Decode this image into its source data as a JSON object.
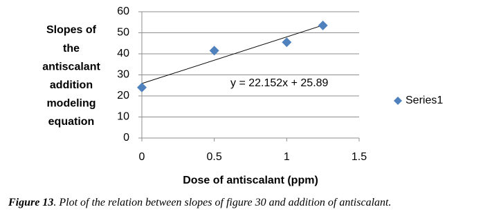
{
  "chart_data": {
    "type": "scatter",
    "y_label": [
      "Slopes of",
      "the",
      "antiscalant",
      "addition",
      "modeling",
      "equation"
    ],
    "x_label": "Dose of antiscalant (ppm)",
    "x": [
      0,
      0.5,
      1,
      1.25
    ],
    "series": [
      {
        "name": "Series1",
        "color": "#4f81bd",
        "values": [
          24,
          41.5,
          45.5,
          53.5
        ]
      }
    ],
    "trendline": {
      "slope": 22.152,
      "intercept": 25.89,
      "label": "y = 22.152x + 25.89",
      "color": "#000000"
    },
    "xlim": [
      0,
      1.5
    ],
    "xticks": [
      0,
      0.5,
      1,
      1.5
    ],
    "ylim": [
      0,
      60
    ],
    "yticks": [
      0,
      10,
      20,
      30,
      40,
      50,
      60
    ],
    "grid": true,
    "legend": "right",
    "caption": {
      "label": "Figure 13",
      "text": ". Plot of the relation between slopes of figure 30 and addition of antiscalant."
    }
  }
}
